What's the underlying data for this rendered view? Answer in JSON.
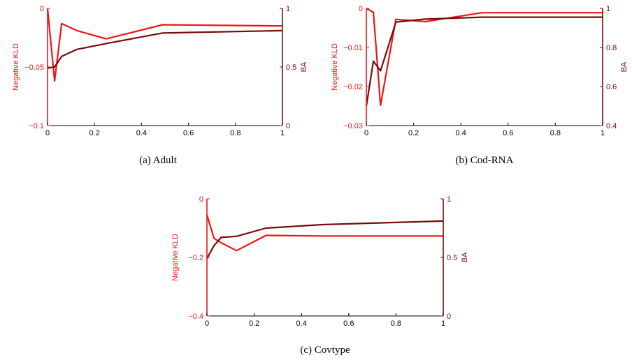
{
  "colors": {
    "kld": "#f01414",
    "ba": "#7a0a0a",
    "axis": "#000000"
  },
  "chart_data": [
    {
      "type": "line",
      "caption": "(a)  Adult",
      "xlim": [
        0,
        1
      ],
      "xticks": [
        "0",
        "0.2",
        "0.4",
        "0.6",
        "0.8",
        "1"
      ],
      "left_axis": {
        "label": "Negative KLD",
        "ylim": [
          -0.1,
          0
        ],
        "ticks": [
          "−0.1",
          "−0.05",
          "0"
        ],
        "tick_values": [
          -0.1,
          -0.05,
          0
        ]
      },
      "right_axis": {
        "label": "BA",
        "ylim": [
          0,
          1
        ],
        "ticks": [
          "0",
          "0.5",
          "1"
        ],
        "tick_values": [
          0,
          0.5,
          1
        ]
      },
      "series": [
        {
          "axis": "left",
          "color": "kld",
          "x": [
            0,
            0.03,
            0.06,
            0.125,
            0.25,
            0.49,
            1
          ],
          "y": [
            0,
            -0.062,
            -0.013,
            -0.019,
            -0.026,
            -0.014,
            -0.015
          ]
        },
        {
          "axis": "right",
          "color": "ba",
          "x": [
            0,
            0.03,
            0.06,
            0.125,
            0.25,
            0.49,
            1
          ],
          "y": [
            0.49,
            0.5,
            0.59,
            0.65,
            0.7,
            0.79,
            0.81
          ]
        }
      ]
    },
    {
      "type": "line",
      "caption": "(b)  Cod-RNA",
      "xlim": [
        0,
        1
      ],
      "xticks": [
        "0",
        "0.2",
        "0.4",
        "0.6",
        "0.8",
        "1"
      ],
      "left_axis": {
        "label": "Negative KLD",
        "ylim": [
          -0.03,
          0
        ],
        "ticks": [
          "−0.03",
          "−0.02",
          "−0.01",
          "0"
        ],
        "tick_values": [
          -0.03,
          -0.02,
          -0.01,
          0
        ]
      },
      "right_axis": {
        "label": "BA",
        "ylim": [
          0.4,
          1
        ],
        "ticks": [
          "0.4",
          "0.6",
          "0.8",
          "1"
        ],
        "tick_values": [
          0.4,
          0.6,
          0.8,
          1
        ]
      },
      "series": [
        {
          "axis": "left",
          "color": "kld",
          "x": [
            0,
            0.03,
            0.06,
            0.125,
            0.25,
            0.49,
            1
          ],
          "y": [
            0,
            -0.001,
            -0.0248,
            -0.0028,
            -0.0034,
            -0.0011,
            -0.0011
          ]
        },
        {
          "axis": "right",
          "color": "ba",
          "x": [
            0,
            0.03,
            0.06,
            0.125,
            0.25,
            0.49,
            1
          ],
          "y": [
            0.5,
            0.73,
            0.68,
            0.93,
            0.945,
            0.955,
            0.955
          ]
        }
      ]
    },
    {
      "type": "line",
      "caption": "(c)  Covtype",
      "xlim": [
        0,
        1
      ],
      "xticks": [
        "0",
        "0.2",
        "0.4",
        "0.6",
        "0.8",
        "1"
      ],
      "left_axis": {
        "label": "Negative KLD",
        "ylim": [
          -0.4,
          0
        ],
        "ticks": [
          "−0.4",
          "−0.2",
          "0"
        ],
        "tick_values": [
          -0.4,
          -0.2,
          0
        ]
      },
      "right_axis": {
        "label": "BA",
        "ylim": [
          0,
          1
        ],
        "ticks": [
          "0",
          "0.5",
          "1"
        ],
        "tick_values": [
          0,
          0.5,
          1
        ]
      },
      "series": [
        {
          "axis": "left",
          "color": "kld",
          "x": [
            0,
            0.03,
            0.06,
            0.125,
            0.25,
            0.49,
            1
          ],
          "y": [
            -0.055,
            -0.135,
            -0.15,
            -0.177,
            -0.125,
            -0.127,
            -0.127
          ]
        },
        {
          "axis": "right",
          "color": "ba",
          "x": [
            0,
            0.03,
            0.06,
            0.125,
            0.25,
            0.49,
            1
          ],
          "y": [
            0.49,
            0.6,
            0.67,
            0.68,
            0.75,
            0.78,
            0.81
          ]
        }
      ]
    }
  ]
}
